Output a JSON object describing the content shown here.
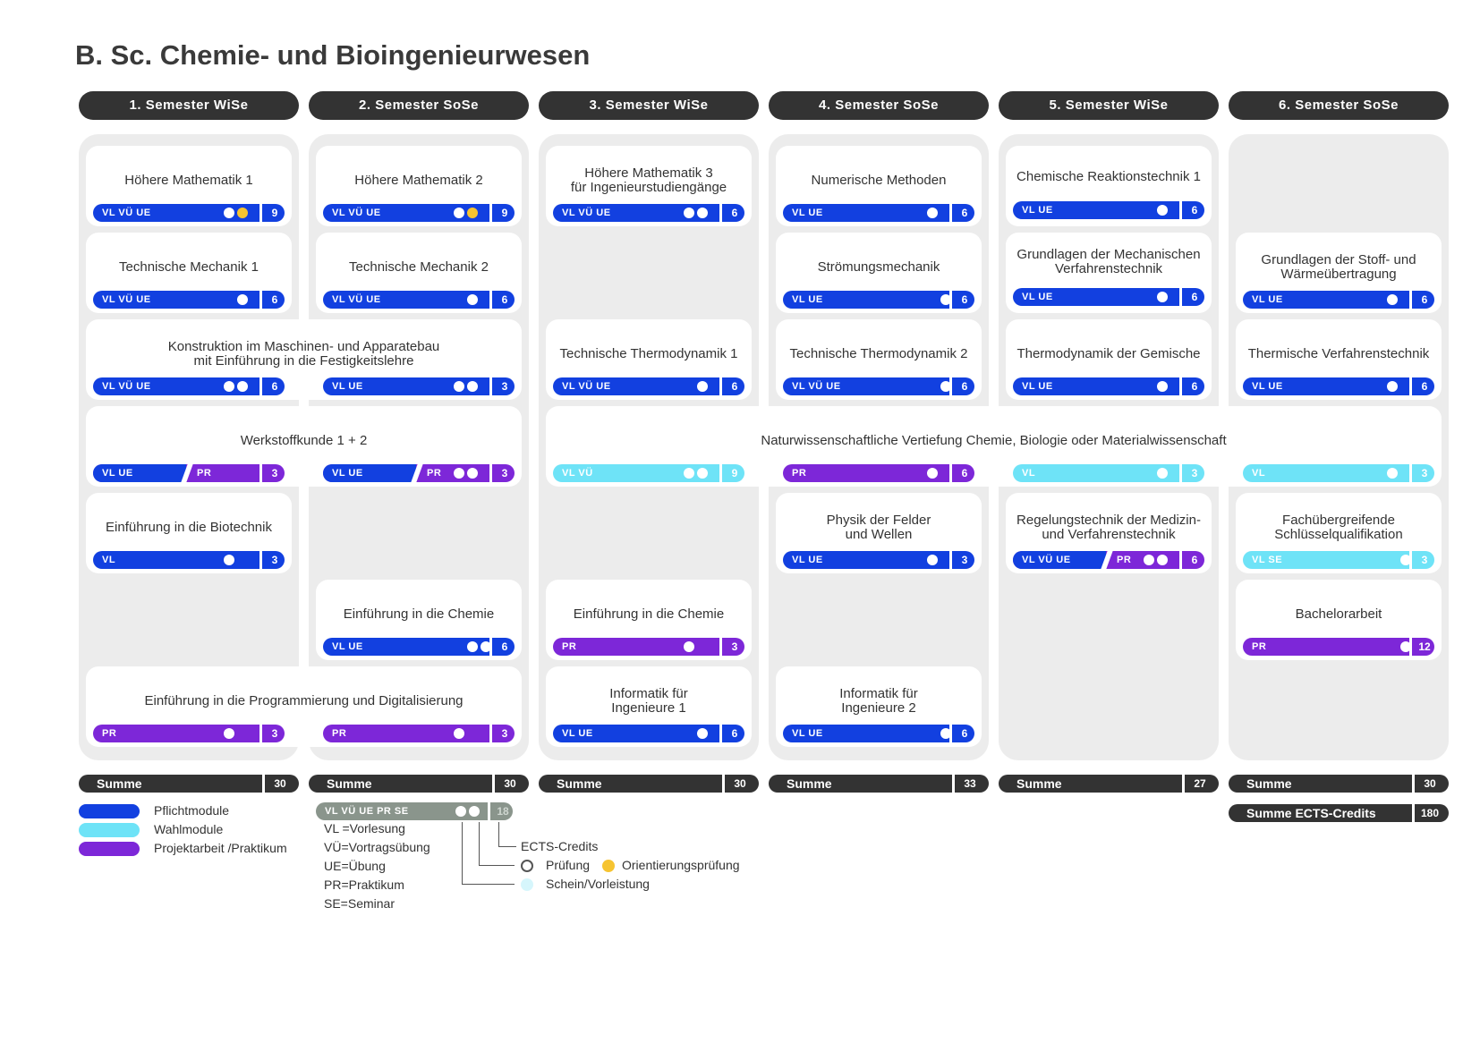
{
  "title": "B. Sc. Chemie- und Bioingenieurwesen",
  "colors": {
    "pflicht": "#1240e0",
    "wahl": "#6ee3f7",
    "projekt": "#7d27d8",
    "yellow": "#f6c431",
    "dark": "#333333"
  },
  "semesters": [
    {
      "label": "1. Semester  WiSe",
      "sum": "30"
    },
    {
      "label": "2. Semester  SoSe",
      "sum": "30"
    },
    {
      "label": "3. Semester  WiSe",
      "sum": "30"
    },
    {
      "label": "4. Semester  SoSe",
      "sum": "33"
    },
    {
      "label": "5. Semester  WiSe",
      "sum": "27"
    },
    {
      "label": "6. Semester SoSe",
      "sum": "30"
    }
  ],
  "sum_label": "Summe",
  "total_label": "Summe ECTS-Credits",
  "total_value": "180",
  "modules": {
    "hm1": {
      "title": "Höhere Mathematik 1",
      "types": "VL VÜ UE",
      "ects": "9"
    },
    "hm2": {
      "title": "Höhere Mathematik 2",
      "types": "VL VÜ UE",
      "ects": "9"
    },
    "hm3": {
      "title": "Höhere Mathematik 3\nfür Ingenieurstudiengänge",
      "types": "VL VÜ UE",
      "ects": "6"
    },
    "num": {
      "title": "Numerische Methoden",
      "types": "VL UE",
      "ects": "6"
    },
    "crt": {
      "title": "Chemische Reaktionstechnik 1",
      "types": "VL UE",
      "ects": "6"
    },
    "tm1": {
      "title": "Technische Mechanik 1",
      "types": "VL VÜ UE",
      "ects": "6"
    },
    "tm2": {
      "title": "Technische Mechanik 2",
      "types": "VL VÜ UE",
      "ects": "6"
    },
    "stroem": {
      "title": "Strömungsmechanik",
      "types": "VL UE",
      "ects": "6"
    },
    "gmv": {
      "title": "Grundlagen der Mechanischen\nVerfahrenstechnik",
      "types": "VL UE",
      "ects": "6"
    },
    "gsw": {
      "title": "Grundlagen der Stoff- und\nWärmeübertragung",
      "types": "VL UE",
      "ects": "6"
    },
    "kma": {
      "title": "Konstruktion im Maschinen- und Apparatebau\nmit Einführung in die Festigkeitslehre",
      "types_a": "VL VÜ UE",
      "ects_a": "6",
      "types_b": "VL UE",
      "ects_b": "3"
    },
    "tt1": {
      "title": "Technische Thermodynamik 1",
      "types": "VL VÜ UE",
      "ects": "6"
    },
    "tt2": {
      "title": "Technische Thermodynamik 2",
      "types": "VL VÜ UE",
      "ects": "6"
    },
    "tdg": {
      "title": "Thermodynamik der Gemische",
      "types": "VL UE",
      "ects": "6"
    },
    "tvt": {
      "title": "Thermische Verfahrenstechnik",
      "types": "VL UE",
      "ects": "6"
    },
    "wk": {
      "title": "Werkstoffkunde 1 + 2",
      "types_a": "VL UE",
      "pr_a": "PR",
      "ects_a": "3",
      "types_b": "VL UE",
      "pr_b": "PR",
      "ects_b": "3"
    },
    "nat": {
      "title": "Naturwissenschaftliche Vertiefung Chemie, Biologie oder Materialwissenschaft",
      "s3_types": "VL  VÜ",
      "s3_ects": "9",
      "s4_types": "PR",
      "s4_ects": "6",
      "s5_types": "VL",
      "s5_ects": "3",
      "s6_types": "VL",
      "s6_ects": "3"
    },
    "bio": {
      "title": "Einführung in die Biotechnik",
      "types": "VL",
      "ects": "3"
    },
    "phys": {
      "title": "Physik der Felder\nund Wellen",
      "types": "VL UE",
      "ects": "3"
    },
    "reg": {
      "title": "Regelungstechnik der Medizin-\nund Verfahrenstechnik",
      "types": "VL VÜ UE",
      "pr": "PR",
      "ects": "6"
    },
    "fsq": {
      "title": "Fachübergreifende\nSchlüsselqualifikation",
      "types": "VL  SE",
      "ects": "3"
    },
    "ch2": {
      "title": "Einführung in die Chemie",
      "types": "VL UE",
      "ects": "6"
    },
    "ch3": {
      "title": "Einführung in die Chemie",
      "types": "PR",
      "ects": "3"
    },
    "ba": {
      "title": "Bachelorarbeit",
      "types": "PR",
      "ects": "12"
    },
    "prog": {
      "title": "Einführung in die Programmierung und Digitalisierung",
      "types_a": "PR",
      "ects_a": "3",
      "types_b": "PR",
      "ects_b": "3"
    },
    "inf1": {
      "title": "Informatik für\nIngenieure 1",
      "types": "VL UE",
      "ects": "6"
    },
    "inf2": {
      "title": "Informatik für\nIngenieure 2",
      "types": "VL UE",
      "ects": "6"
    }
  },
  "legend": {
    "pflicht": "Pflichtmodule",
    "wahl": "Wahlmodule",
    "projekt": "Projektarbeit /Praktikum",
    "sample_types": "VL  VÜ  UE  PR  SE",
    "sample_ects": "18",
    "abbrev": [
      "VL =Vorlesung",
      "VÜ=Vortragsübung",
      "UE=Übung",
      "PR=Praktikum",
      "SE=Seminar"
    ],
    "ects_label": "ECTS-Credits",
    "pruefung": "Prüfung",
    "orientierung": "Orientierungsprüfung",
    "schein": "Schein/Vorleistung"
  }
}
